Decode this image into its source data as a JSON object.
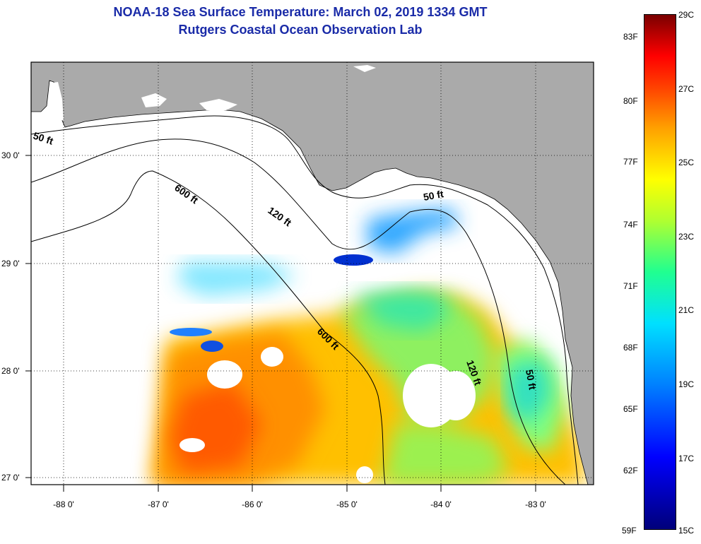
{
  "title_line1": "NOAA-18 Sea Surface Temperature:  March 02, 2019 1334 GMT",
  "title_line2": "Rutgers Coastal Ocean Observation Lab",
  "axes": {
    "lat_labels": [
      "30 0'",
      "29 0'",
      "28 0'",
      "27 0'"
    ],
    "lon_labels": [
      "-88 0'",
      "-87 0'",
      "-86 0'",
      "-85 0'",
      "-84 0'",
      "-83 0'"
    ]
  },
  "contours": {
    "label_50ft_west": "50 ft",
    "label_600ft_north": "600 ft",
    "label_120ft_north": "120 ft",
    "label_50ft_east": "50 ft",
    "label_600ft_south": "600 ft",
    "label_120ft_south": "120 ft",
    "label_50ft_south": "50 ft"
  },
  "colorbar": {
    "fahrenheit": [
      "83F",
      "80F",
      "77F",
      "74F",
      "71F",
      "68F",
      "65F",
      "62F",
      "59F"
    ],
    "celsius": [
      "29C",
      "27C",
      "25C",
      "23C",
      "21C",
      "19C",
      "17C",
      "15C"
    ]
  },
  "colors": {
    "land": "#aaaaaa",
    "title": "#1a2ba8"
  }
}
